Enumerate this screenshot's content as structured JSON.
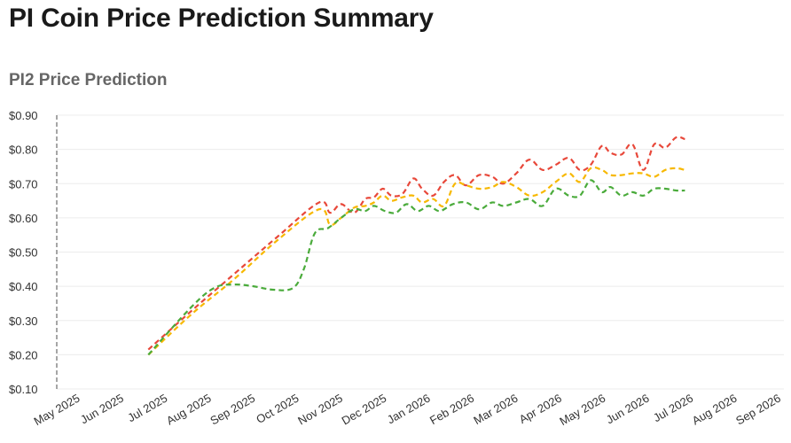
{
  "title": "PI Coin Price Prediction Summary",
  "chart_data": {
    "type": "line",
    "title": "PI2 Price Prediction",
    "xlabel": "",
    "ylabel": "",
    "ylim": [
      0.1,
      0.9
    ],
    "y_ticks": [
      "$0.10",
      "$0.20",
      "$0.30",
      "$0.40",
      "$0.50",
      "$0.60",
      "$0.70",
      "$0.80",
      "$0.90"
    ],
    "y_tick_values": [
      0.1,
      0.2,
      0.3,
      0.4,
      0.5,
      0.6,
      0.7,
      0.8,
      0.9
    ],
    "categories": [
      "May 2025",
      "Jun 2025",
      "Jul 2025",
      "Aug 2025",
      "Sep 2025",
      "Oct 2025",
      "Nov 2025",
      "Dec 2025",
      "Jan 2026",
      "Feb 2026",
      "Mar 2026",
      "Apr 2026",
      "May 2026",
      "Jun 2026",
      "Jul 2026",
      "Aug 2026",
      "Sep 2026"
    ],
    "grid": true,
    "legend": "none",
    "series": [
      {
        "color": "#e8483a",
        "values": [
          [
            2.05,
            0.215
          ],
          [
            3.05,
            0.33
          ],
          [
            4.0,
            0.435
          ],
          [
            5.0,
            0.545
          ],
          [
            5.95,
            0.645
          ],
          [
            6.2,
            0.615
          ],
          [
            6.45,
            0.64
          ],
          [
            6.75,
            0.615
          ],
          [
            7.0,
            0.655
          ],
          [
            7.2,
            0.66
          ],
          [
            7.4,
            0.685
          ],
          [
            7.6,
            0.665
          ],
          [
            7.85,
            0.67
          ],
          [
            8.1,
            0.715
          ],
          [
            8.3,
            0.685
          ],
          [
            8.55,
            0.665
          ],
          [
            8.8,
            0.705
          ],
          [
            9.05,
            0.725
          ],
          [
            9.3,
            0.695
          ],
          [
            9.6,
            0.725
          ],
          [
            9.9,
            0.72
          ],
          [
            10.15,
            0.7
          ],
          [
            10.45,
            0.73
          ],
          [
            10.75,
            0.77
          ],
          [
            11.05,
            0.74
          ],
          [
            11.35,
            0.755
          ],
          [
            11.65,
            0.775
          ],
          [
            11.9,
            0.74
          ],
          [
            12.15,
            0.755
          ],
          [
            12.4,
            0.81
          ],
          [
            12.6,
            0.79
          ],
          [
            12.85,
            0.785
          ],
          [
            13.1,
            0.815
          ],
          [
            13.35,
            0.74
          ],
          [
            13.6,
            0.815
          ],
          [
            13.85,
            0.805
          ],
          [
            14.1,
            0.835
          ],
          [
            14.3,
            0.83
          ]
        ]
      },
      {
        "color": "#f7b800",
        "values": [
          [
            2.05,
            0.2
          ],
          [
            3.05,
            0.32
          ],
          [
            4.0,
            0.42
          ],
          [
            5.0,
            0.535
          ],
          [
            5.95,
            0.625
          ],
          [
            6.2,
            0.58
          ],
          [
            6.45,
            0.6
          ],
          [
            6.75,
            0.63
          ],
          [
            7.0,
            0.635
          ],
          [
            7.2,
            0.645
          ],
          [
            7.4,
            0.665
          ],
          [
            7.6,
            0.65
          ],
          [
            7.85,
            0.66
          ],
          [
            8.1,
            0.665
          ],
          [
            8.3,
            0.645
          ],
          [
            8.55,
            0.655
          ],
          [
            8.8,
            0.635
          ],
          [
            9.05,
            0.7
          ],
          [
            9.3,
            0.695
          ],
          [
            9.6,
            0.685
          ],
          [
            9.9,
            0.69
          ],
          [
            10.15,
            0.705
          ],
          [
            10.45,
            0.69
          ],
          [
            10.75,
            0.665
          ],
          [
            11.05,
            0.675
          ],
          [
            11.35,
            0.705
          ],
          [
            11.65,
            0.73
          ],
          [
            11.9,
            0.705
          ],
          [
            12.15,
            0.745
          ],
          [
            12.4,
            0.74
          ],
          [
            12.6,
            0.725
          ],
          [
            12.85,
            0.725
          ],
          [
            13.1,
            0.73
          ],
          [
            13.35,
            0.73
          ],
          [
            13.6,
            0.72
          ],
          [
            13.85,
            0.74
          ],
          [
            14.1,
            0.745
          ],
          [
            14.3,
            0.74
          ]
        ]
      },
      {
        "color": "#4aab3b",
        "values": [
          [
            2.05,
            0.2
          ],
          [
            3.0,
            0.335
          ],
          [
            3.55,
            0.395
          ],
          [
            4.0,
            0.405
          ],
          [
            4.45,
            0.4
          ],
          [
            4.9,
            0.39
          ],
          [
            5.35,
            0.395
          ],
          [
            5.6,
            0.45
          ],
          [
            5.85,
            0.555
          ],
          [
            6.15,
            0.57
          ],
          [
            6.45,
            0.6
          ],
          [
            6.75,
            0.625
          ],
          [
            7.0,
            0.62
          ],
          [
            7.2,
            0.635
          ],
          [
            7.45,
            0.62
          ],
          [
            7.7,
            0.615
          ],
          [
            7.95,
            0.64
          ],
          [
            8.2,
            0.62
          ],
          [
            8.45,
            0.635
          ],
          [
            8.7,
            0.62
          ],
          [
            9.0,
            0.64
          ],
          [
            9.3,
            0.645
          ],
          [
            9.6,
            0.625
          ],
          [
            9.9,
            0.645
          ],
          [
            10.15,
            0.635
          ],
          [
            10.45,
            0.645
          ],
          [
            10.75,
            0.655
          ],
          [
            11.05,
            0.635
          ],
          [
            11.35,
            0.685
          ],
          [
            11.65,
            0.665
          ],
          [
            11.9,
            0.665
          ],
          [
            12.15,
            0.71
          ],
          [
            12.4,
            0.675
          ],
          [
            12.6,
            0.69
          ],
          [
            12.85,
            0.665
          ],
          [
            13.1,
            0.675
          ],
          [
            13.35,
            0.665
          ],
          [
            13.6,
            0.685
          ],
          [
            13.85,
            0.685
          ],
          [
            14.1,
            0.68
          ],
          [
            14.3,
            0.68
          ]
        ]
      }
    ]
  }
}
